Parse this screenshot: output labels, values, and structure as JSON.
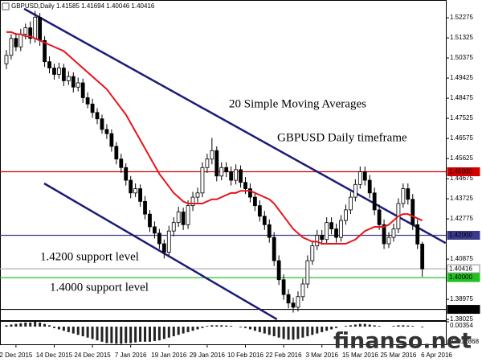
{
  "chart_data": {
    "type": "candlestick",
    "title": "GBPUSD,Daily  1.41585 1.41694 1.40046 1.40416",
    "ohlc": [
      [
        1.501,
        1.5075,
        1.4985,
        1.505
      ],
      [
        1.505,
        1.515,
        1.503,
        1.513
      ],
      [
        1.513,
        1.5155,
        1.507,
        1.509
      ],
      [
        1.509,
        1.5175,
        1.507,
        1.515
      ],
      [
        1.515,
        1.52,
        1.5125,
        1.518
      ],
      [
        1.518,
        1.521,
        1.5105,
        1.513
      ],
      [
        1.513,
        1.526,
        1.511,
        1.523
      ],
      [
        1.523,
        1.525,
        1.5095,
        1.512
      ],
      [
        1.512,
        1.514,
        1.4995,
        1.502
      ],
      [
        1.502,
        1.5045,
        1.4965,
        1.499
      ],
      [
        1.499,
        1.501,
        1.4935,
        1.496
      ],
      [
        1.496,
        1.5015,
        1.494,
        1.499
      ],
      [
        1.499,
        1.501,
        1.4905,
        1.493
      ],
      [
        1.493,
        1.4975,
        1.491,
        1.495
      ],
      [
        1.495,
        1.497,
        1.4875,
        1.49
      ],
      [
        1.49,
        1.4945,
        1.488,
        1.492
      ],
      [
        1.492,
        1.494,
        1.4825,
        1.485
      ],
      [
        1.485,
        1.4875,
        1.48,
        1.482
      ],
      [
        1.482,
        1.4845,
        1.4755,
        1.478
      ],
      [
        1.478,
        1.48,
        1.4725,
        1.475
      ],
      [
        1.475,
        1.477,
        1.468,
        1.47
      ],
      [
        1.47,
        1.4725,
        1.4655,
        1.468
      ],
      [
        1.468,
        1.47,
        1.4595,
        1.462
      ],
      [
        1.462,
        1.464,
        1.4535,
        1.456
      ],
      [
        1.456,
        1.4585,
        1.4495,
        1.452
      ],
      [
        1.452,
        1.454,
        1.4435,
        1.446
      ],
      [
        1.446,
        1.448,
        1.4375,
        1.44
      ],
      [
        1.44,
        1.4445,
        1.438,
        1.442
      ],
      [
        1.442,
        1.444,
        1.4335,
        1.436
      ],
      [
        1.436,
        1.4385,
        1.4275,
        1.43
      ],
      [
        1.43,
        1.432,
        1.4215,
        1.424
      ],
      [
        1.424,
        1.4265,
        1.4185,
        1.421
      ],
      [
        1.421,
        1.423,
        1.4135,
        1.416
      ],
      [
        1.416,
        1.418,
        1.409,
        1.412
      ],
      [
        1.412,
        1.4245,
        1.41,
        1.422
      ],
      [
        1.422,
        1.4285,
        1.4195,
        1.426
      ],
      [
        1.426,
        1.4335,
        1.424,
        1.431
      ],
      [
        1.431,
        1.433,
        1.4225,
        1.425
      ],
      [
        1.425,
        1.4365,
        1.423,
        1.434
      ],
      [
        1.434,
        1.4405,
        1.4315,
        1.438
      ],
      [
        1.438,
        1.4425,
        1.4355,
        1.44
      ],
      [
        1.44,
        1.4545,
        1.438,
        1.452
      ],
      [
        1.452,
        1.4585,
        1.4495,
        1.456
      ],
      [
        1.456,
        1.466,
        1.4535,
        1.46
      ],
      [
        1.46,
        1.462,
        1.4455,
        1.448
      ],
      [
        1.448,
        1.4545,
        1.446,
        1.452
      ],
      [
        1.452,
        1.4545,
        1.4475,
        1.45
      ],
      [
        1.45,
        1.4525,
        1.4435,
        1.446
      ],
      [
        1.446,
        1.4535,
        1.444,
        1.451
      ],
      [
        1.451,
        1.453,
        1.4425,
        1.445
      ],
      [
        1.445,
        1.4475,
        1.4395,
        1.442
      ],
      [
        1.442,
        1.4445,
        1.4355,
        1.438
      ],
      [
        1.438,
        1.4405,
        1.4315,
        1.434
      ],
      [
        1.434,
        1.4365,
        1.4265,
        1.429
      ],
      [
        1.429,
        1.4315,
        1.4225,
        1.425
      ],
      [
        1.425,
        1.4275,
        1.4165,
        1.419
      ],
      [
        1.419,
        1.4215,
        1.4055,
        1.408
      ],
      [
        1.408,
        1.4105,
        1.3965,
        1.399
      ],
      [
        1.399,
        1.4015,
        1.3895,
        1.392
      ],
      [
        1.392,
        1.3945,
        1.3855,
        1.388
      ],
      [
        1.388,
        1.3905,
        1.3835,
        1.386
      ],
      [
        1.386,
        1.3935,
        1.384,
        1.391
      ],
      [
        1.391,
        1.3995,
        1.389,
        1.397
      ],
      [
        1.397,
        1.4105,
        1.395,
        1.408
      ],
      [
        1.408,
        1.4175,
        1.406,
        1.415
      ],
      [
        1.415,
        1.4225,
        1.413,
        1.42
      ],
      [
        1.42,
        1.4225,
        1.4155,
        1.418
      ],
      [
        1.418,
        1.4285,
        1.416,
        1.426
      ],
      [
        1.426,
        1.4285,
        1.4205,
        1.423
      ],
      [
        1.423,
        1.4255,
        1.4165,
        1.419
      ],
      [
        1.419,
        1.4295,
        1.417,
        1.427
      ],
      [
        1.427,
        1.4345,
        1.425,
        1.432
      ],
      [
        1.432,
        1.4405,
        1.43,
        1.438
      ],
      [
        1.438,
        1.4465,
        1.436,
        1.444
      ],
      [
        1.444,
        1.4525,
        1.442,
        1.45
      ],
      [
        1.45,
        1.4525,
        1.4435,
        1.446
      ],
      [
        1.446,
        1.4485,
        1.4375,
        1.44
      ],
      [
        1.44,
        1.4425,
        1.4295,
        1.432
      ],
      [
        1.432,
        1.4345,
        1.4225,
        1.425
      ],
      [
        1.425,
        1.4275,
        1.4135,
        1.416
      ],
      [
        1.416,
        1.4215,
        1.414,
        1.419
      ],
      [
        1.419,
        1.4255,
        1.417,
        1.423
      ],
      [
        1.423,
        1.4375,
        1.421,
        1.435
      ],
      [
        1.435,
        1.4445,
        1.433,
        1.442
      ],
      [
        1.442,
        1.4445,
        1.4345,
        1.437
      ],
      [
        1.437,
        1.4395,
        1.4225,
        1.425
      ],
      [
        1.425,
        1.4275,
        1.4135,
        1.41585
      ],
      [
        1.41585,
        1.41694,
        1.40046,
        1.40416
      ]
    ],
    "ma": {
      "color": "#e8141a",
      "values": [
        1.516,
        1.516,
        1.515,
        1.515,
        1.514,
        1.514,
        1.513,
        1.512,
        1.511,
        1.51,
        1.509,
        1.508,
        1.507,
        1.505,
        1.503,
        1.501,
        1.499,
        1.497,
        1.495,
        1.493,
        1.491,
        1.489,
        1.486,
        1.483,
        1.48,
        1.477,
        1.473,
        1.469,
        1.465,
        1.461,
        1.457,
        1.453,
        1.449,
        1.446,
        1.443,
        1.44,
        1.438,
        1.436,
        1.435,
        1.435,
        1.435,
        1.435,
        1.436,
        1.437,
        1.437,
        1.438,
        1.439,
        1.44,
        1.44,
        1.441,
        1.441,
        1.441,
        1.44,
        1.439,
        1.438,
        1.437,
        1.435,
        1.432,
        1.429,
        1.426,
        1.423,
        1.421,
        1.419,
        1.418,
        1.417,
        1.417,
        1.416,
        1.416,
        1.416,
        1.416,
        1.416,
        1.416,
        1.417,
        1.418,
        1.42,
        1.422,
        1.423,
        1.424,
        1.424,
        1.424,
        1.425,
        1.427,
        1.429,
        1.43,
        1.43,
        1.429,
        1.428,
        1.427
      ]
    },
    "xlim": [
      -1.34,
      91.93
    ],
    "xticks": [
      {
        "value": 2,
        "label": "2 Dec 2015"
      },
      {
        "value": 10,
        "label": "14 Dec 2015"
      },
      {
        "value": 18,
        "label": "24 Dec 2015"
      },
      {
        "value": 26,
        "label": "7 Jan 2016"
      },
      {
        "value": 34,
        "label": "19 Jan 2016"
      },
      {
        "value": 42,
        "label": "29 Jan 2016"
      },
      {
        "value": 50,
        "label": "10 Feb 2016"
      },
      {
        "value": 58,
        "label": "22 Feb 2016"
      },
      {
        "value": 66,
        "label": "3 Mar 2016"
      },
      {
        "value": 74,
        "label": "15 Mar 2016"
      },
      {
        "value": 82,
        "label": "25 Mar 2016"
      },
      {
        "value": 90,
        "label": "6 Apr 2016"
      }
    ],
    "ylim": [
      1.3799,
      1.5281
    ],
    "yticks": [
      1.52275,
      1.51325,
      1.50375,
      1.49425,
      1.48475,
      1.47525,
      1.46575,
      1.45625,
      1.44675,
      1.43725,
      1.42775,
      1.40875,
      1.38975,
      1.38025
    ],
    "levels": [
      {
        "value": 1.45,
        "label": "1.45000",
        "color": "#d40000"
      },
      {
        "value": 1.42,
        "label": "1.42000",
        "color": "#3a3a8c"
      },
      {
        "value": 1.40416,
        "label": "1.40416",
        "color": "#b0b0b0"
      },
      {
        "value": 1.4,
        "label": "1.40000",
        "color": "#22c022"
      },
      {
        "value": 1.385,
        "label": "1.38500",
        "color": "#000000"
      }
    ],
    "trendlines": [
      {
        "x": [
          3.7,
          91.9
        ],
        "y": [
          1.527,
          1.4163
        ],
        "color": "#1c1c78"
      },
      {
        "x": [
          7.9,
          56.6
        ],
        "y": [
          1.4445,
          1.3803
        ],
        "color": "#1c1c78"
      }
    ],
    "annotations": [
      {
        "text": "20 Simple Moving Averages",
        "color": "#d40000"
      },
      {
        "text": "GBPUSD Daily timeframe",
        "color": "#1c1c78"
      },
      {
        "text": "1.4200 support level",
        "color": "#3a3a8c"
      },
      {
        "text": "1.4000 support level",
        "color": "#22c022"
      }
    ],
    "indicator": {
      "type": "histogram",
      "color": "#222222",
      "ylim": [
        -0.012868,
        0.00354
      ],
      "yticks": [
        0.00354,
        -0.012868
      ],
      "values": [
        0.001,
        0.0015,
        0.002,
        0.0025,
        0.003,
        0.003,
        0.0035,
        0.003,
        0.002,
        0.001,
        -0.001,
        -0.002,
        -0.003,
        -0.004,
        -0.005,
        -0.006,
        -0.007,
        -0.008,
        -0.009,
        -0.01,
        -0.011,
        -0.012,
        -0.012,
        -0.0125,
        -0.0125,
        -0.012,
        -0.012,
        -0.0115,
        -0.011,
        -0.011,
        -0.011,
        -0.0105,
        -0.01,
        -0.009,
        -0.008,
        -0.007,
        -0.006,
        -0.005,
        -0.004,
        -0.003,
        -0.002,
        -0.001,
        0.0005,
        0.001,
        0.001,
        0.001,
        0.0008,
        0.0005,
        0,
        -0.0005,
        -0.001,
        -0.002,
        -0.003,
        -0.004,
        -0.005,
        -0.006,
        -0.007,
        -0.008,
        -0.009,
        -0.0095,
        -0.0095,
        -0.009,
        -0.008,
        -0.007,
        -0.006,
        -0.005,
        -0.004,
        -0.003,
        -0.002,
        -0.001,
        0,
        0.0005,
        0.001,
        0.0015,
        0.002,
        0.002,
        0.0015,
        0.001,
        0.0005,
        0,
        0,
        0.0005,
        0.001,
        0.001,
        0.0008,
        0.0005,
        0,
        -0.0005
      ]
    },
    "watermark": "finanso.net"
  }
}
